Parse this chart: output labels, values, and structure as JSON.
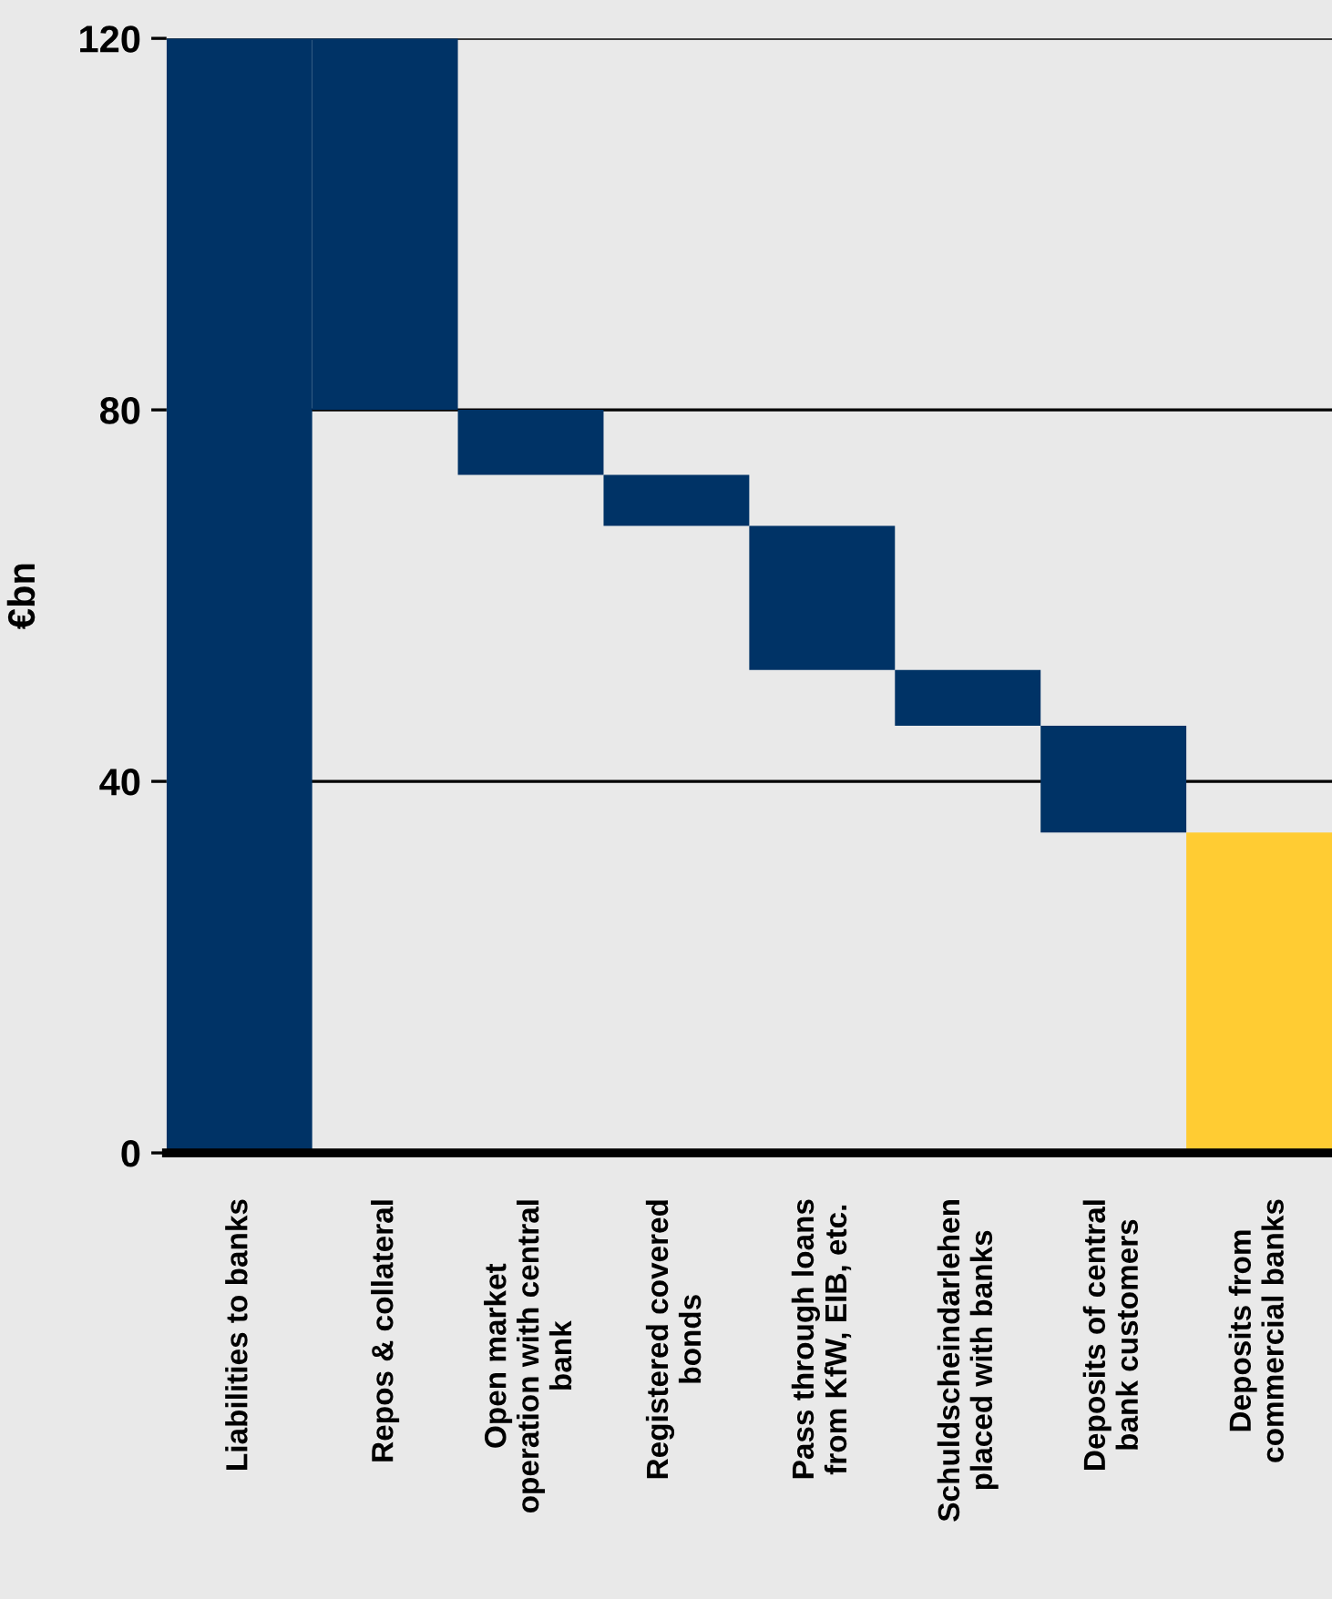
{
  "chart_data": {
    "type": "bar",
    "ylabel": "€bn",
    "categories": [
      "Liabilities to banks",
      "Repos & collateral",
      "Open market\noperation with central\nbank",
      "Registered covered\nbonds",
      "Pass through loans\nfrom KfW, EIB, etc.",
      "Schuldscheindarlehen\nplaced with banks",
      "Deposits of central\nbank customers",
      "Deposits from\ncommercial banks"
    ],
    "values": [
      120,
      40,
      7,
      5.5,
      15.5,
      6,
      11.5,
      34.5
    ],
    "base": [
      0,
      80,
      73,
      67.5,
      52,
      46,
      34.5,
      0
    ],
    "colors": [
      "#003366",
      "#003366",
      "#003366",
      "#003366",
      "#003366",
      "#003366",
      "#003366",
      "#ffcc33"
    ],
    "ylim": [
      0,
      120
    ],
    "yticks": [
      0,
      40,
      80,
      120
    ],
    "grid": "y"
  }
}
